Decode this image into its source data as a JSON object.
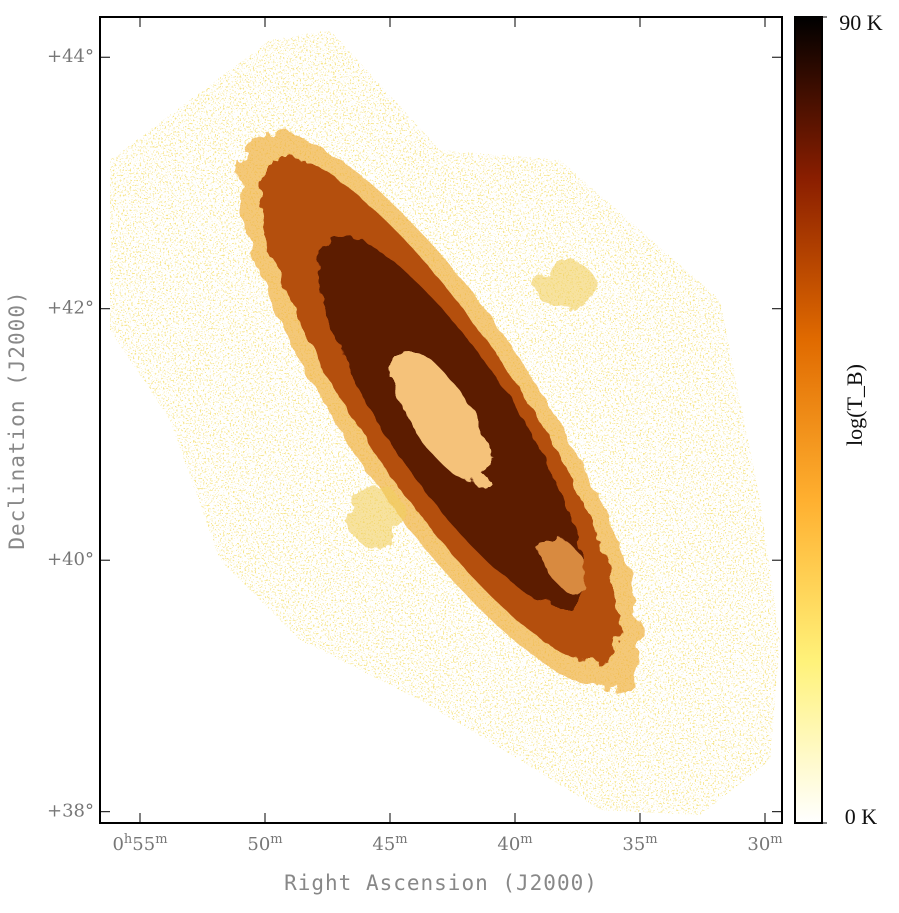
{
  "chart_data": {
    "type": "image",
    "xlabel": "Right Ascension (J2000)",
    "ylabel": "Declination (J2000)",
    "xlim": [
      56.6,
      29.32
    ],
    "xticks": [
      {
        "value": 55,
        "label": "0h55m"
      },
      {
        "value": 50,
        "label": "50m"
      },
      {
        "value": 45,
        "label": "45m"
      },
      {
        "value": 40,
        "label": "40m"
      },
      {
        "value": 35,
        "label": "35m"
      },
      {
        "value": 30,
        "label": "30m"
      }
    ],
    "ylim": [
      37.91,
      44.32
    ],
    "yticks": [
      {
        "value": 44,
        "label": "+44°"
      },
      {
        "value": 42,
        "label": "+42°"
      },
      {
        "value": 40,
        "label": "+40°"
      },
      {
        "value": 38,
        "label": "+38°"
      }
    ],
    "colorbar": {
      "label": "log(T_B)",
      "clim": [
        0,
        90
      ],
      "ticks": [
        {
          "value": 90,
          "label": "90 K"
        },
        {
          "value": 0,
          "label": "0 K"
        }
      ],
      "colors": [
        "#ffffff",
        "#fff27a",
        "#ffb030",
        "#e06a00",
        "#8a1e00",
        "#000000"
      ]
    }
  }
}
